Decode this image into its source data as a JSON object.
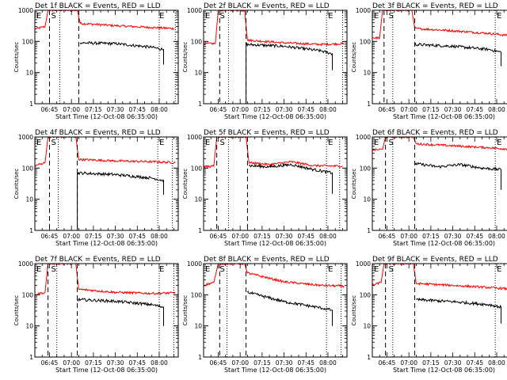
{
  "chart_data": {
    "type": "line",
    "yscale": "log",
    "ylim": [
      1,
      1000
    ],
    "yticks": [
      {
        "value": 1,
        "label": "1"
      },
      {
        "value": 10,
        "label": "10"
      },
      {
        "value": 100,
        "label": "100"
      },
      {
        "value": 1000,
        "label": "1000"
      }
    ],
    "xlim": [
      "06:35",
      "08:13"
    ],
    "xticks": [
      {
        "value": "06:45",
        "label": "06:45"
      },
      {
        "value": "07:00",
        "label": "07:00"
      },
      {
        "value": "07:15",
        "label": "07:15"
      },
      {
        "value": "07:30",
        "label": "07:30"
      },
      {
        "value": "07:45",
        "label": "07:45"
      },
      {
        "value": "08:00",
        "label": "08:00"
      }
    ],
    "xlabel": "Start Time (12-Oct-08 06:35:00)",
    "ylabel": "Counts/sec",
    "series_colors": {
      "events": "#000000",
      "lld": "#ff0000"
    },
    "markers": [
      {
        "label": "E",
        "time": "06:35"
      },
      {
        "label": "S",
        "time": "06:45"
      },
      {
        "label": "E",
        "time": "07:59"
      }
    ],
    "panels": [
      {
        "title": "Det 1f BLACK = Events, RED = LLD",
        "vlines": {
          "dashed": [
            "06:45",
            "07:05"
          ],
          "dotted": [
            "06:52",
            "08:00",
            "08:11"
          ]
        },
        "lld": [
          {
            "x": "06:35",
            "y": 250
          },
          {
            "x": "06:42",
            "y": 300
          },
          {
            "x": "06:44",
            "y": 1000
          },
          {
            "x": "07:04",
            "y": 1000
          },
          {
            "x": "07:06",
            "y": 380
          },
          {
            "x": "07:30",
            "y": 320
          },
          {
            "x": "07:55",
            "y": 280
          },
          {
            "x": "08:10",
            "y": 260
          }
        ],
        "events": [
          {
            "x": "07:06",
            "y": 90
          },
          {
            "x": "07:30",
            "y": 85
          },
          {
            "x": "07:55",
            "y": 65
          },
          {
            "x": "08:03",
            "y": 55
          },
          {
            "x": "08:03",
            "y": 18
          }
        ]
      },
      {
        "title": "Det 2f BLACK = Events, RED = LLD",
        "vlines": {
          "dashed": [
            "06:46",
            "07:04"
          ],
          "dotted": [
            "06:52",
            "07:59",
            "08:10"
          ]
        },
        "lld": [
          {
            "x": "06:35",
            "y": 85
          },
          {
            "x": "06:43",
            "y": 85
          },
          {
            "x": "06:45",
            "y": 1000
          },
          {
            "x": "07:03",
            "y": 1000
          },
          {
            "x": "07:05",
            "y": 110
          },
          {
            "x": "07:30",
            "y": 90
          },
          {
            "x": "07:55",
            "y": 80
          },
          {
            "x": "08:11",
            "y": 85
          }
        ],
        "events": [
          {
            "x": "07:04",
            "y": 1
          },
          {
            "x": "07:04",
            "y": 80
          },
          {
            "x": "07:30",
            "y": 70
          },
          {
            "x": "07:55",
            "y": 50
          },
          {
            "x": "08:03",
            "y": 40
          },
          {
            "x": "08:03",
            "y": 12
          }
        ]
      },
      {
        "title": "Det 3f BLACK = Events, RED = LLD",
        "vlines": {
          "dashed": [
            "06:43",
            "07:04"
          ],
          "dotted": [
            "06:49",
            "07:59",
            "08:10"
          ]
        },
        "lld": [
          {
            "x": "06:35",
            "y": 130
          },
          {
            "x": "06:40",
            "y": 130
          },
          {
            "x": "06:42",
            "y": 1000
          },
          {
            "x": "07:02",
            "y": 1000
          },
          {
            "x": "07:04",
            "y": 260
          },
          {
            "x": "07:30",
            "y": 220
          },
          {
            "x": "07:55",
            "y": 180
          },
          {
            "x": "08:11",
            "y": 150
          }
        ],
        "events": [
          {
            "x": "07:04",
            "y": 80
          },
          {
            "x": "07:30",
            "y": 70
          },
          {
            "x": "07:55",
            "y": 55
          },
          {
            "x": "08:03",
            "y": 45
          },
          {
            "x": "08:03",
            "y": 16
          }
        ]
      },
      {
        "title": "Det 4f BLACK = Events, RED = LLD",
        "vlines": {
          "dashed": [
            "06:45",
            "07:04"
          ],
          "dotted": [
            "06:51",
            "07:59",
            "08:09"
          ]
        },
        "lld": [
          {
            "x": "06:35",
            "y": 120
          },
          {
            "x": "06:42",
            "y": 150
          },
          {
            "x": "06:44",
            "y": 1000
          },
          {
            "x": "07:03",
            "y": 1000
          },
          {
            "x": "07:05",
            "y": 190
          },
          {
            "x": "07:30",
            "y": 170
          },
          {
            "x": "07:55",
            "y": 160
          },
          {
            "x": "08:11",
            "y": 150
          }
        ],
        "events": [
          {
            "x": "07:04",
            "y": 1
          },
          {
            "x": "07:04",
            "y": 70
          },
          {
            "x": "07:30",
            "y": 62
          },
          {
            "x": "07:55",
            "y": 48
          },
          {
            "x": "08:03",
            "y": 40
          },
          {
            "x": "08:03",
            "y": 14
          }
        ]
      },
      {
        "title": "Det 5f BLACK = Events, RED = LLD",
        "vlines": {
          "dashed": [
            "06:44",
            "07:05"
          ],
          "dotted": [
            "06:52",
            "07:59",
            "08:08"
          ]
        },
        "lld": [
          {
            "x": "06:35",
            "y": 110
          },
          {
            "x": "06:42",
            "y": 115
          },
          {
            "x": "06:44",
            "y": 1000
          },
          {
            "x": "07:04",
            "y": 1000
          },
          {
            "x": "07:06",
            "y": 150
          },
          {
            "x": "07:20",
            "y": 130
          },
          {
            "x": "07:35",
            "y": 160
          },
          {
            "x": "07:50",
            "y": 120
          },
          {
            "x": "08:10",
            "y": 115
          }
        ],
        "events": [
          {
            "x": "07:06",
            "y": 120
          },
          {
            "x": "07:20",
            "y": 110
          },
          {
            "x": "07:35",
            "y": 130
          },
          {
            "x": "07:50",
            "y": 90
          },
          {
            "x": "08:03",
            "y": 70
          },
          {
            "x": "08:03",
            "y": 15
          }
        ]
      },
      {
        "title": "Det 6f BLACK = Events, RED = LLD",
        "vlines": {
          "dashed": [
            "06:44",
            "07:04"
          ],
          "dotted": [
            "06:49",
            "07:59",
            "08:10"
          ]
        },
        "lld": [
          {
            "x": "06:35",
            "y": 380
          },
          {
            "x": "06:42",
            "y": 400
          },
          {
            "x": "06:44",
            "y": 1000
          },
          {
            "x": "07:03",
            "y": 1000
          },
          {
            "x": "07:05",
            "y": 600
          },
          {
            "x": "07:30",
            "y": 520
          },
          {
            "x": "07:55",
            "y": 450
          },
          {
            "x": "08:11",
            "y": 400
          }
        ],
        "events": [
          {
            "x": "07:04",
            "y": 140
          },
          {
            "x": "07:20",
            "y": 110
          },
          {
            "x": "07:35",
            "y": 130
          },
          {
            "x": "07:50",
            "y": 100
          },
          {
            "x": "08:03",
            "y": 90
          },
          {
            "x": "08:03",
            "y": 20
          }
        ]
      },
      {
        "title": "Det 7f BLACK = Events, RED = LLD",
        "vlines": {
          "dashed": [
            "06:44",
            "07:04"
          ],
          "dotted": [
            "06:50",
            "08:00",
            "08:10"
          ]
        },
        "lld": [
          {
            "x": "06:35",
            "y": 100
          },
          {
            "x": "06:42",
            "y": 120
          },
          {
            "x": "06:44",
            "y": 1000
          },
          {
            "x": "07:03",
            "y": 1000
          },
          {
            "x": "07:05",
            "y": 150
          },
          {
            "x": "07:30",
            "y": 120
          },
          {
            "x": "07:55",
            "y": 110
          },
          {
            "x": "08:11",
            "y": 115
          }
        ],
        "events": [
          {
            "x": "07:04",
            "y": 70
          },
          {
            "x": "07:30",
            "y": 62
          },
          {
            "x": "07:55",
            "y": 48
          },
          {
            "x": "08:03",
            "y": 40
          },
          {
            "x": "08:03",
            "y": 10
          }
        ]
      },
      {
        "title": "Det 8f BLACK = Events, RED = LLD",
        "vlines": {
          "dashed": [
            "06:46",
            "07:04"
          ],
          "dotted": [
            "06:51",
            "07:59",
            "08:09"
          ]
        },
        "lld": [
          {
            "x": "06:35",
            "y": 200
          },
          {
            "x": "06:42",
            "y": 250
          },
          {
            "x": "06:45",
            "y": 1000
          },
          {
            "x": "07:03",
            "y": 1000
          },
          {
            "x": "07:05",
            "y": 500
          },
          {
            "x": "07:30",
            "y": 260
          },
          {
            "x": "07:55",
            "y": 200
          },
          {
            "x": "08:11",
            "y": 190
          }
        ],
        "events": [
          {
            "x": "07:05",
            "y": 120
          },
          {
            "x": "07:30",
            "y": 60
          },
          {
            "x": "07:55",
            "y": 38
          },
          {
            "x": "08:03",
            "y": 32
          },
          {
            "x": "08:03",
            "y": 10
          }
        ]
      },
      {
        "title": "Det 9f BLACK = Events, RED = LLD",
        "vlines": {
          "dashed": [
            "06:44",
            "07:04"
          ],
          "dotted": [
            "06:49",
            "07:59",
            "08:10"
          ]
        },
        "lld": [
          {
            "x": "06:35",
            "y": 200
          },
          {
            "x": "06:41",
            "y": 250
          },
          {
            "x": "06:43",
            "y": 1000
          },
          {
            "x": "07:03",
            "y": 1000
          },
          {
            "x": "07:05",
            "y": 230
          },
          {
            "x": "07:30",
            "y": 200
          },
          {
            "x": "07:55",
            "y": 170
          },
          {
            "x": "08:11",
            "y": 150
          }
        ],
        "events": [
          {
            "x": "07:05",
            "y": 70
          },
          {
            "x": "07:30",
            "y": 60
          },
          {
            "x": "07:55",
            "y": 48
          },
          {
            "x": "08:03",
            "y": 40
          },
          {
            "x": "08:03",
            "y": 12
          }
        ]
      }
    ]
  }
}
